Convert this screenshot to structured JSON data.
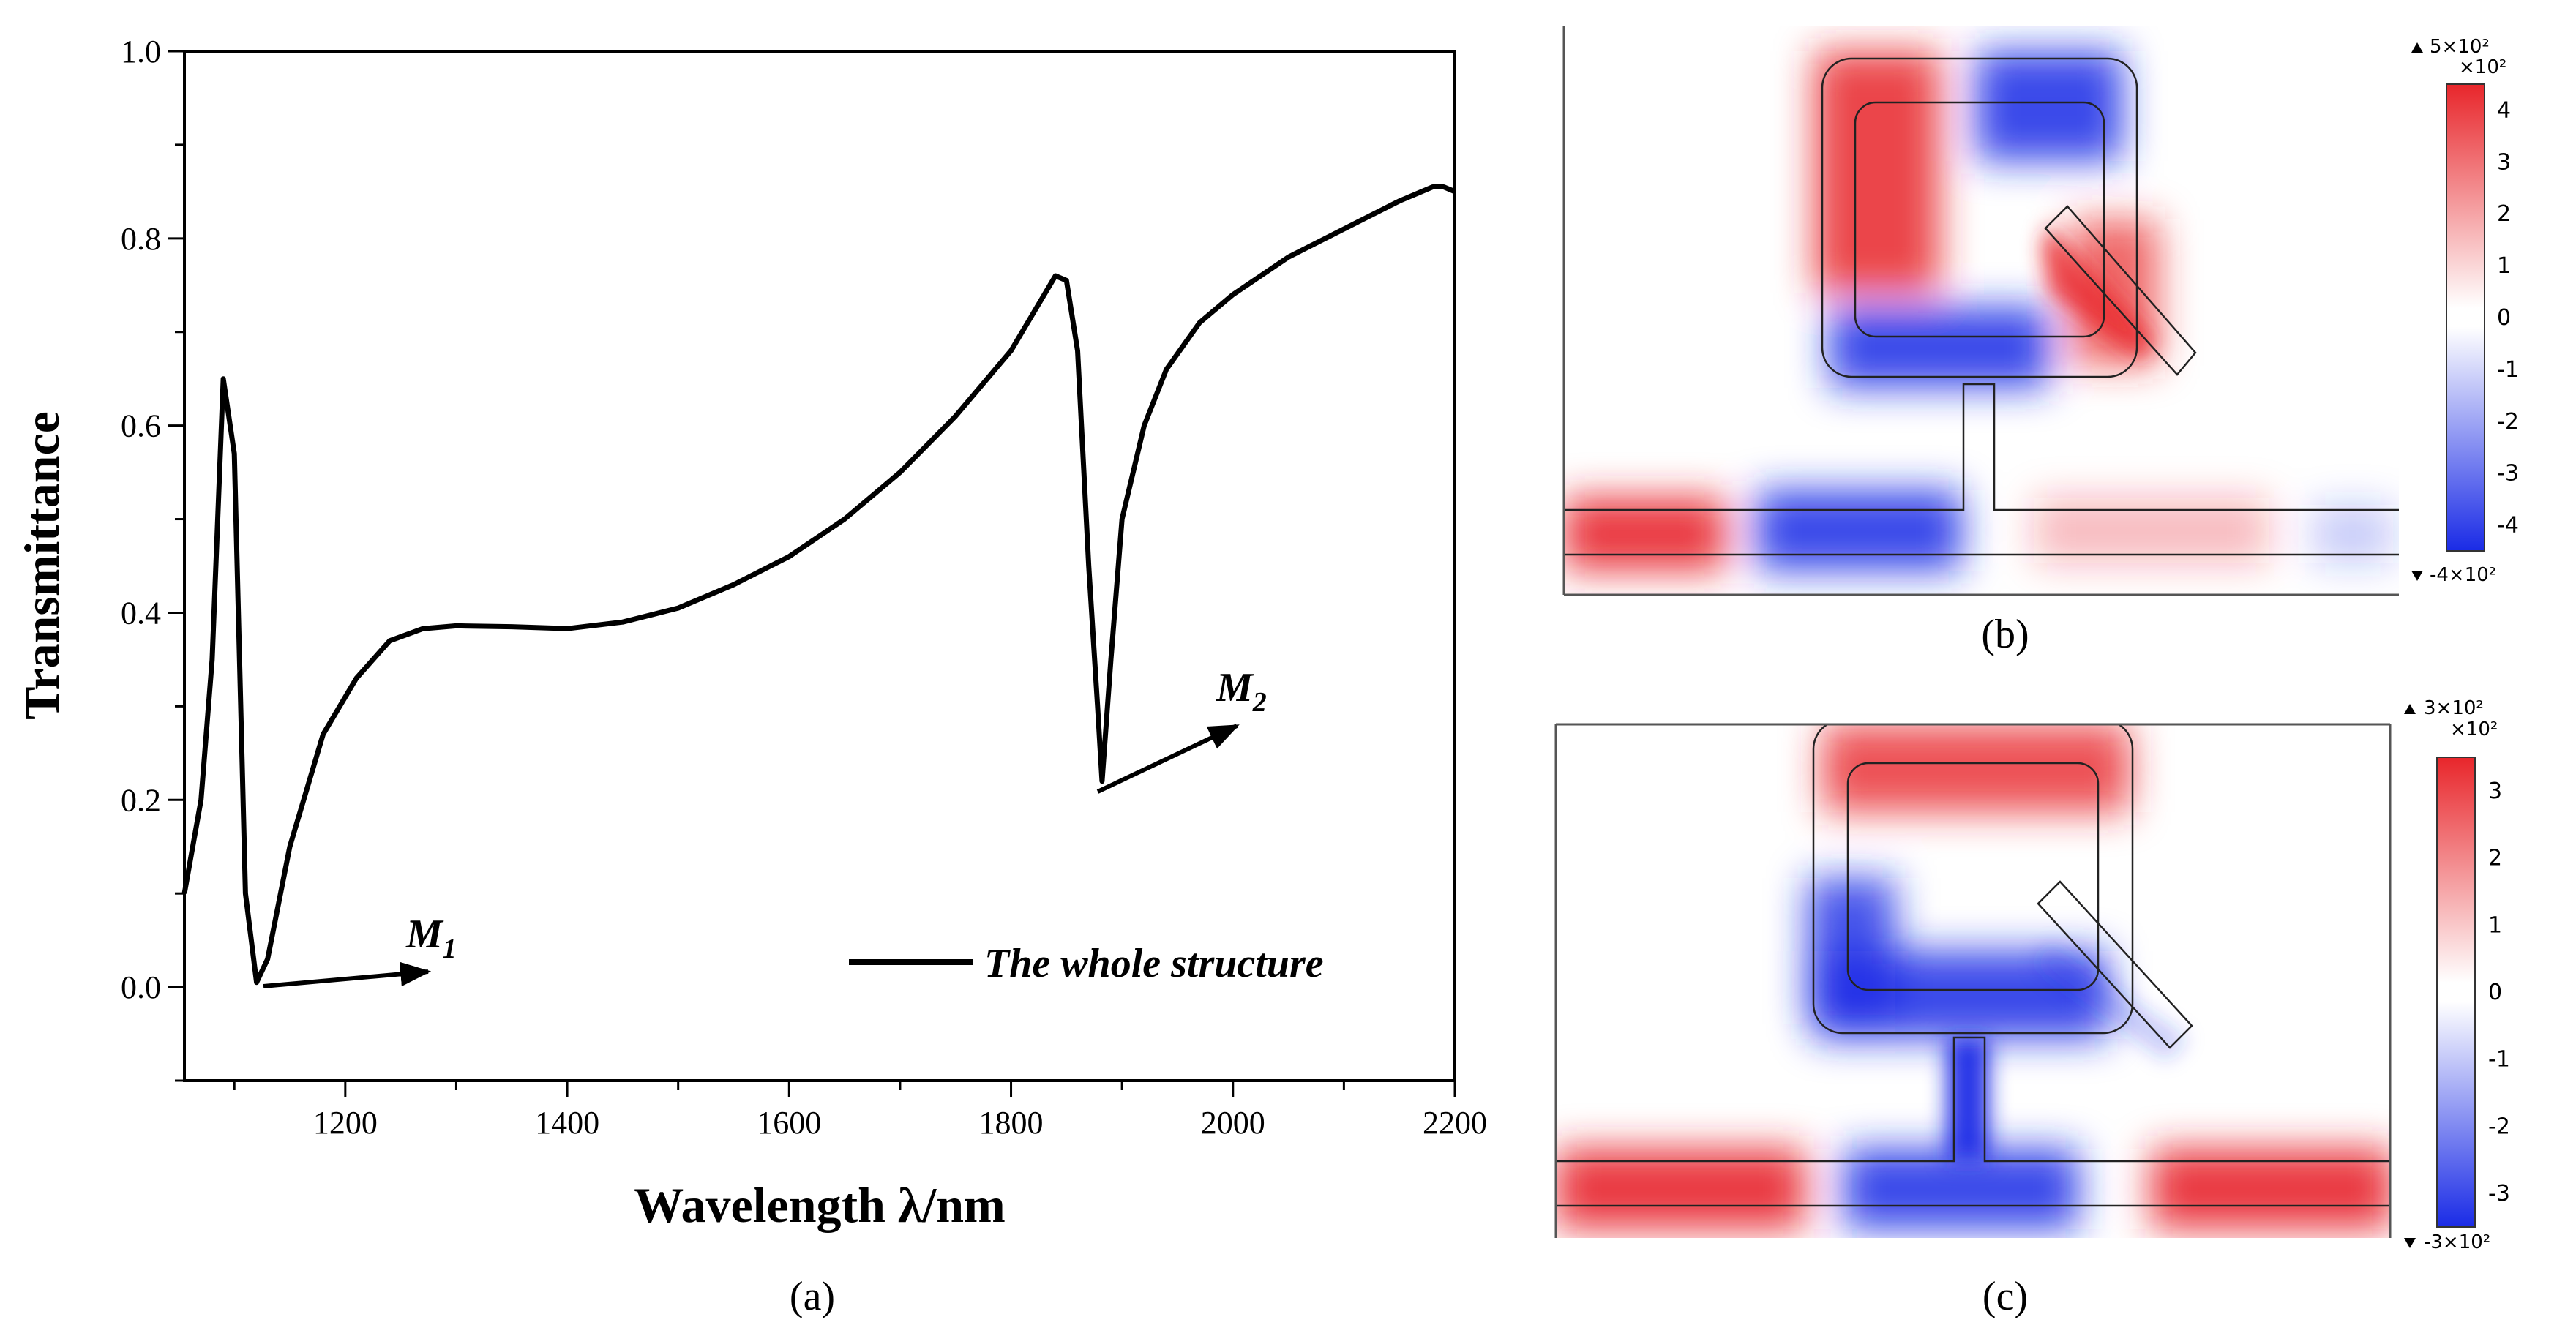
{
  "chart_data": [
    {
      "panel": "(a)",
      "type": "line",
      "xlabel": "Wavelength λ/nm",
      "ylabel": "Transmittance",
      "xlim": [
        1055,
        2200
      ],
      "ylim": [
        -0.1,
        1.0
      ],
      "x_ticks": [
        "1200",
        "1400",
        "1600",
        "1800",
        "2000",
        "2200"
      ],
      "y_ticks": [
        "0.0",
        "0.2",
        "0.4",
        "0.6",
        "0.8",
        "1.0"
      ],
      "legend": {
        "position": "bottom-right",
        "label": "The whole structure"
      },
      "series": [
        {
          "name": "The whole structure",
          "x": [
            1055,
            1070,
            1080,
            1085,
            1090,
            1100,
            1110,
            1120,
            1130,
            1150,
            1180,
            1210,
            1240,
            1270,
            1300,
            1350,
            1400,
            1450,
            1500,
            1550,
            1600,
            1650,
            1700,
            1750,
            1800,
            1840,
            1850,
            1860,
            1870,
            1878,
            1882,
            1890,
            1900,
            1920,
            1940,
            1970,
            2000,
            2050,
            2100,
            2150,
            2180,
            2190,
            2200
          ],
          "y": [
            0.1,
            0.2,
            0.35,
            0.5,
            0.65,
            0.57,
            0.1,
            0.005,
            0.03,
            0.15,
            0.27,
            0.33,
            0.37,
            0.383,
            0.386,
            0.385,
            0.383,
            0.39,
            0.405,
            0.43,
            0.46,
            0.5,
            0.55,
            0.61,
            0.68,
            0.76,
            0.755,
            0.68,
            0.45,
            0.3,
            0.22,
            0.35,
            0.5,
            0.6,
            0.66,
            0.71,
            0.74,
            0.78,
            0.81,
            0.84,
            0.855,
            0.855,
            0.85
          ]
        }
      ],
      "annotations": [
        {
          "text": "M",
          "subscript": "1"
        },
        {
          "text": "M",
          "subscript": "2"
        }
      ]
    },
    {
      "panel": "(b)",
      "type": "heatmap",
      "colorbar": {
        "top": "5×10²",
        "bottom": "-4×10²",
        "exponent": "×10²",
        "ticks": [
          "4",
          "3",
          "2",
          "1",
          "0",
          "-1",
          "-2",
          "-3",
          "-4"
        ]
      }
    },
    {
      "panel": "(c)",
      "type": "heatmap",
      "colorbar": {
        "top": "3×10²",
        "bottom": "-3×10²",
        "exponent": "×10²",
        "ticks": [
          "3",
          "2",
          "1",
          "0",
          "-1",
          "-2",
          "-3"
        ]
      }
    }
  ],
  "colors": {
    "positive": "#e8262b",
    "negative": "#1a2be6",
    "neutral": "#ffffff",
    "line": "#000000"
  }
}
